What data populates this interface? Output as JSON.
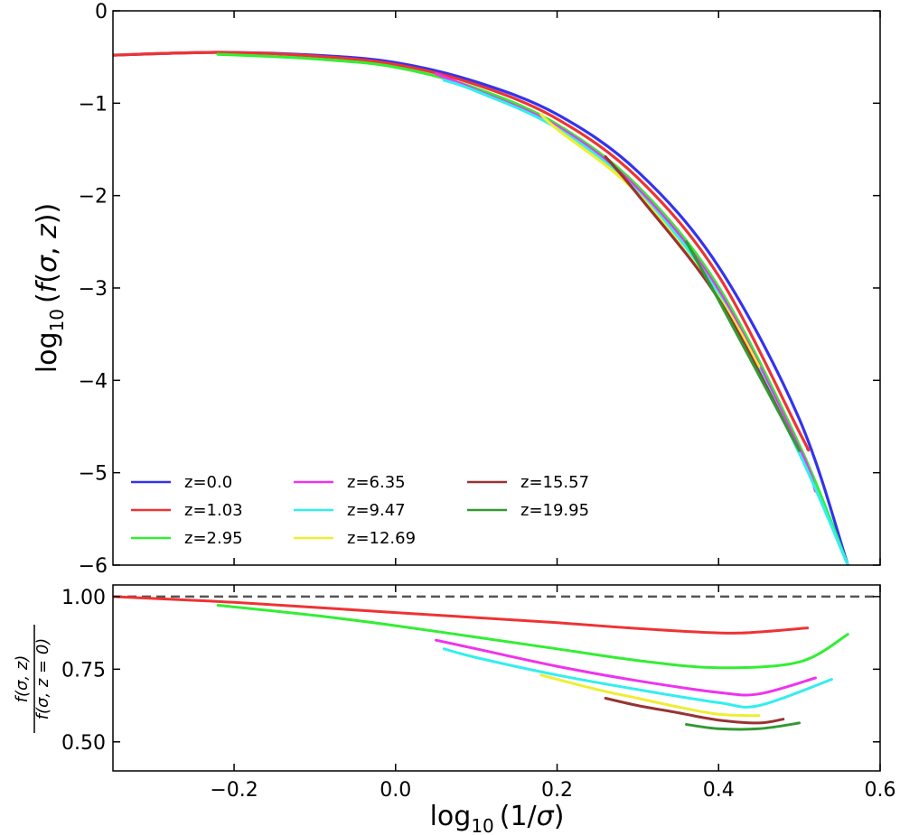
{
  "chart_data": [
    {
      "type": "line",
      "panel": "top",
      "ylabel": "log10(f(σ,z))",
      "xlim": [
        -0.35,
        0.6
      ],
      "ylim": [
        -6,
        0
      ],
      "yticks": [
        0,
        -1,
        -2,
        -3,
        -4,
        -5,
        -6
      ],
      "ytick_labels": [
        "0",
        "−1",
        "−2",
        "−3",
        "−4",
        "−5",
        "−6"
      ],
      "xticks": [
        -0.2,
        0.0,
        0.2,
        0.4,
        0.6
      ],
      "legend_loc": "lower-left",
      "series": [
        {
          "name": "z=0.0",
          "color": "#3333ee",
          "x": [
            -0.35,
            -0.22,
            -0.1,
            0.0,
            0.1,
            0.2,
            0.3,
            0.4,
            0.5,
            0.56
          ],
          "y": [
            -0.48,
            -0.45,
            -0.48,
            -0.56,
            -0.77,
            -1.12,
            -1.74,
            -2.77,
            -4.42,
            -6.0
          ]
        },
        {
          "name": "z=1.03",
          "color": "#ee3333",
          "x": [
            -0.35,
            -0.22,
            -0.1,
            0.0,
            0.1,
            0.2,
            0.3,
            0.4,
            0.5,
            0.51
          ],
          "y": [
            -0.48,
            -0.45,
            -0.49,
            -0.58,
            -0.8,
            -1.17,
            -1.81,
            -2.87,
            -4.56,
            -4.74
          ]
        },
        {
          "name": "z=2.95",
          "color": "#33ee33",
          "x": [
            -0.22,
            -0.1,
            0.0,
            0.1,
            0.2,
            0.3,
            0.4,
            0.5,
            0.56
          ],
          "y": [
            -0.47,
            -0.52,
            -0.61,
            -0.84,
            -1.23,
            -1.9,
            -2.99,
            -4.7,
            -6.0
          ]
        },
        {
          "name": "z=6.35",
          "color": "#ee33ee",
          "x": [
            0.05,
            0.1,
            0.2,
            0.3,
            0.4,
            0.5,
            0.52
          ],
          "y": [
            -0.68,
            -0.86,
            -1.25,
            -1.93,
            -3.03,
            -4.74,
            -5.2
          ]
        },
        {
          "name": "z=9.47",
          "color": "#33eeee",
          "x": [
            0.06,
            0.1,
            0.2,
            0.3,
            0.4,
            0.5,
            0.56
          ],
          "y": [
            -0.75,
            -0.87,
            -1.27,
            -1.96,
            -3.07,
            -4.79,
            -6.0
          ]
        },
        {
          "name": "z=12.69",
          "color": "#eeee33",
          "x": [
            0.18,
            0.2,
            0.3,
            0.4,
            0.45
          ],
          "y": [
            -1.12,
            -1.28,
            -1.98,
            -3.1,
            -3.85
          ]
        },
        {
          "name": "z=15.57",
          "color": "#993333",
          "x": [
            0.26,
            0.3,
            0.4,
            0.49
          ],
          "y": [
            -1.58,
            -1.99,
            -3.12,
            -4.6
          ]
        },
        {
          "name": "z=19.95",
          "color": "#339933",
          "x": [
            0.36,
            0.4,
            0.5
          ],
          "y": [
            -2.5,
            -3.13,
            -4.76
          ]
        }
      ]
    },
    {
      "type": "line",
      "panel": "bottom",
      "xlabel": "log10(1/σ)",
      "ylabel": "f(σ,z) / f(σ,z=0)",
      "xlim": [
        -0.35,
        0.6
      ],
      "ylim": [
        0.4,
        1.04
      ],
      "yticks": [
        1.0,
        0.75,
        0.5
      ],
      "ytick_labels": [
        "1.00",
        "0.75",
        "0.50"
      ],
      "xticks": [
        -0.2,
        0.0,
        0.2,
        0.4,
        0.6
      ],
      "xtick_labels": [
        "−0.2",
        "0.0",
        "0.2",
        "0.4",
        "0.6"
      ],
      "reference_line": {
        "y": 1.0,
        "style": "dashed",
        "color": "#555555"
      },
      "series": [
        {
          "name": "z=1.03",
          "color": "#ee3333",
          "x": [
            -0.35,
            -0.2,
            0.0,
            0.2,
            0.3,
            0.4,
            0.45,
            0.51
          ],
          "y": [
            1.0,
            0.98,
            0.945,
            0.91,
            0.89,
            0.875,
            0.878,
            0.892
          ]
        },
        {
          "name": "z=2.95",
          "color": "#33ee33",
          "x": [
            -0.22,
            -0.1,
            0.0,
            0.1,
            0.2,
            0.3,
            0.4,
            0.5,
            0.56
          ],
          "y": [
            0.97,
            0.935,
            0.9,
            0.86,
            0.82,
            0.78,
            0.755,
            0.775,
            0.87
          ]
        },
        {
          "name": "z=6.35",
          "color": "#ee33ee",
          "x": [
            0.05,
            0.1,
            0.2,
            0.3,
            0.4,
            0.45,
            0.52
          ],
          "y": [
            0.85,
            0.82,
            0.76,
            0.71,
            0.67,
            0.665,
            0.72
          ]
        },
        {
          "name": "z=9.47",
          "color": "#33eeee",
          "x": [
            0.06,
            0.1,
            0.2,
            0.3,
            0.4,
            0.45,
            0.54
          ],
          "y": [
            0.82,
            0.79,
            0.73,
            0.68,
            0.635,
            0.625,
            0.715
          ]
        },
        {
          "name": "z=12.69",
          "color": "#eeee33",
          "x": [
            0.18,
            0.25,
            0.3,
            0.35,
            0.4,
            0.45
          ],
          "y": [
            0.73,
            0.68,
            0.65,
            0.62,
            0.595,
            0.59
          ]
        },
        {
          "name": "z=15.57",
          "color": "#993333",
          "x": [
            0.26,
            0.3,
            0.35,
            0.4,
            0.45,
            0.48
          ],
          "y": [
            0.65,
            0.625,
            0.6,
            0.575,
            0.565,
            0.578
          ]
        },
        {
          "name": "z=19.95",
          "color": "#339933",
          "x": [
            0.36,
            0.4,
            0.45,
            0.5
          ],
          "y": [
            0.56,
            0.545,
            0.545,
            0.565
          ]
        }
      ]
    }
  ],
  "labels": {
    "top_ylabel": "log10 (f(σ, z))",
    "bottom_xlabel": "log10 (1/σ)",
    "bottom_ylabel_num": "f(σ, z)",
    "bottom_ylabel_den": "f(σ, z = 0)"
  }
}
